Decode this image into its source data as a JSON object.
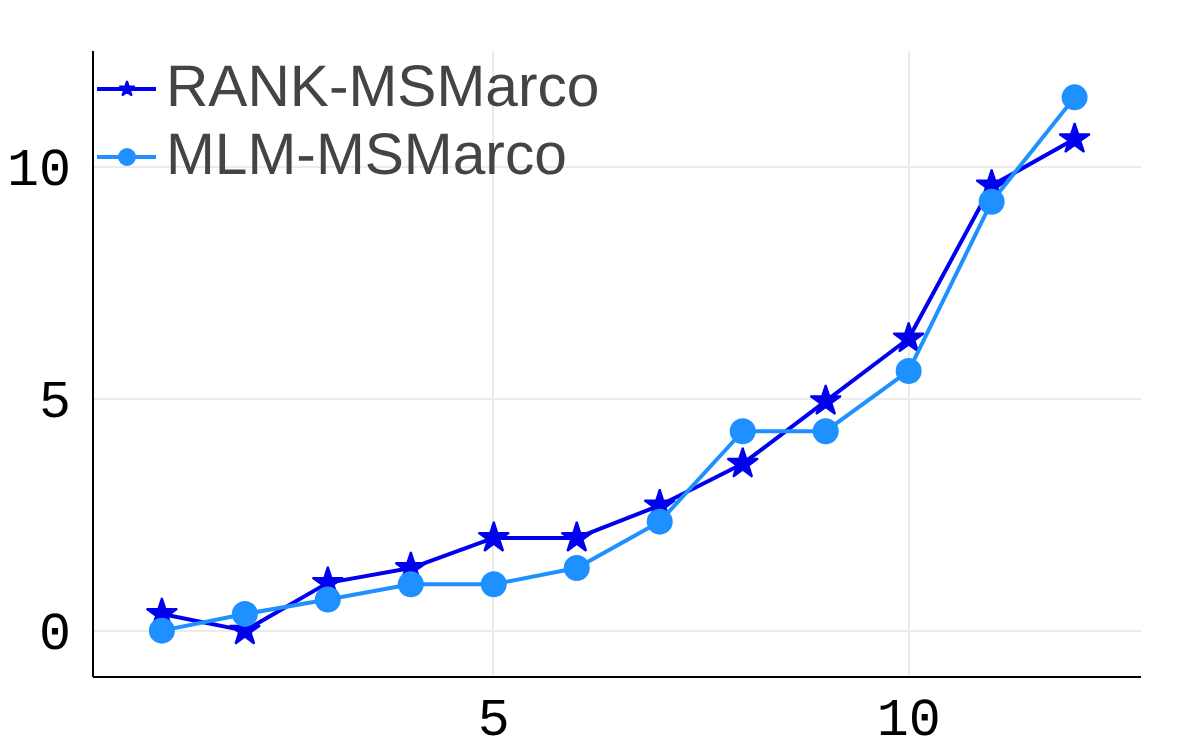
{
  "chart_data": {
    "type": "line",
    "x": [
      1,
      2,
      3,
      4,
      5,
      6,
      7,
      8,
      9,
      10,
      11,
      12
    ],
    "series": [
      {
        "name": "RANK-MSMarco",
        "color": "#0000ee",
        "marker": "star",
        "values": [
          0.36,
          0,
          1.03,
          1.35,
          2.0,
          2.0,
          2.7,
          3.6,
          4.95,
          6.3,
          9.6,
          10.6
        ]
      },
      {
        "name": "MLM-MSMarco",
        "color": "#1e90ff",
        "marker": "circle",
        "values": [
          0,
          0.36,
          0.67,
          1.0,
          1.0,
          1.35,
          2.35,
          4.3,
          4.3,
          5.6,
          9.25,
          11.5
        ]
      }
    ],
    "xlim": [
      0.17,
      12.8
    ],
    "ylim": [
      -1,
      12.5
    ],
    "xticks": [
      5,
      10
    ],
    "yticks": [
      0,
      5,
      10
    ],
    "grid": true,
    "legend": "top left",
    "line_style": "solid"
  }
}
